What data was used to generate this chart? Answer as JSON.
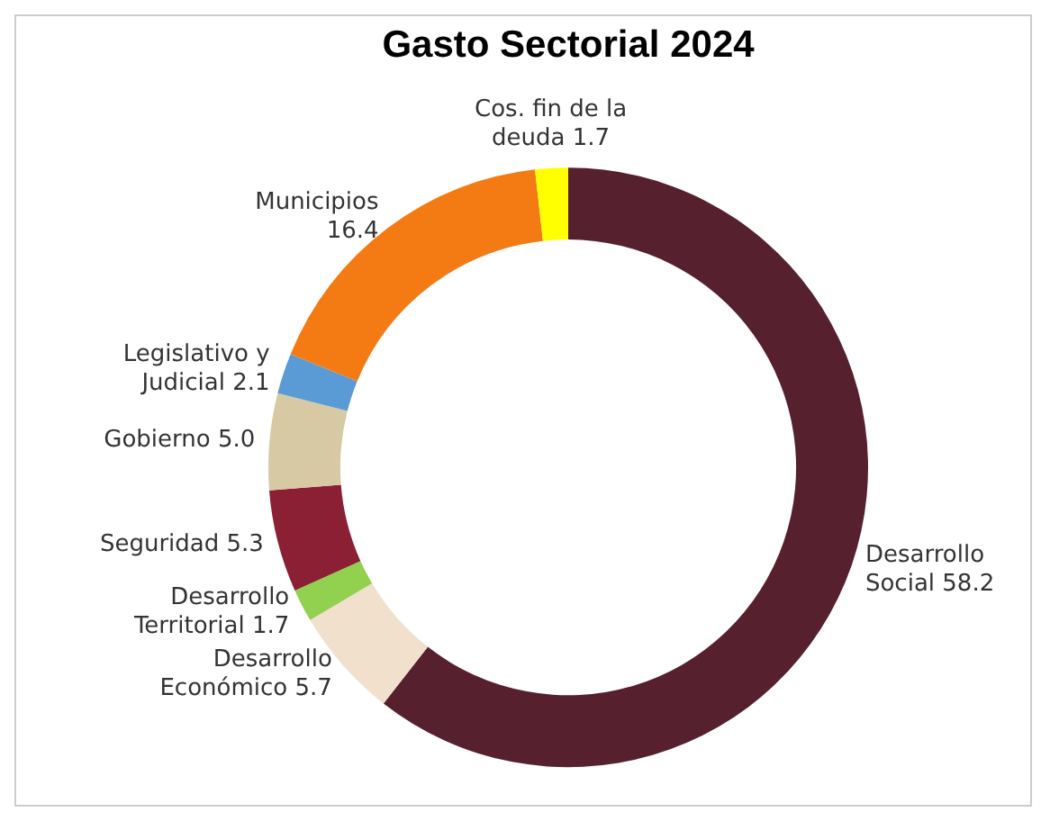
{
  "chart_data": {
    "type": "donut",
    "title": "Gasto Sectorial 2024",
    "categories": [
      "Desarrollo Social",
      "Desarrollo Económico",
      "Desarrollo Territorial",
      "Seguridad",
      "Gobierno",
      "Legislativo y Judicial",
      "Municipios",
      "Cos. fin de la deuda"
    ],
    "values": [
      58.2,
      5.7,
      1.7,
      5.3,
      5.0,
      2.1,
      16.4,
      1.7
    ],
    "colors": [
      "#56202e",
      "#f0e0cc",
      "#92d050",
      "#8b2035",
      "#d6c9a3",
      "#5b9bd5",
      "#f47b13",
      "#ffff00"
    ],
    "value_labels": [
      "58.2",
      "5.7",
      "1.7",
      "5.3",
      "5.0",
      "2.1",
      "16.4",
      "1.7"
    ],
    "legend": false
  }
}
